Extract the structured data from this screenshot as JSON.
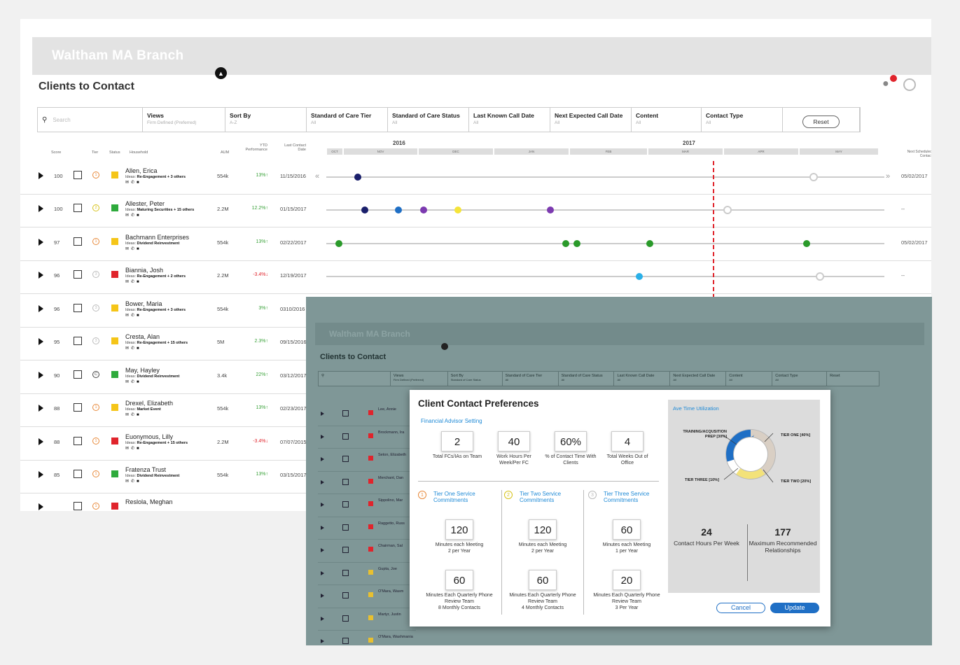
{
  "app": {
    "branch": "Waltham MA Branch",
    "page_title": "Clients to Contact"
  },
  "search": {
    "placeholder": "Search"
  },
  "filters": [
    {
      "label": "Views",
      "value": "Firm Defined (Preferred)"
    },
    {
      "label": "Sort By",
      "value": "A-Z"
    },
    {
      "label": "Standard of Care Tier",
      "value": "All"
    },
    {
      "label": "Standard of Care Status",
      "value": "All"
    },
    {
      "label": "Last Known Call Date",
      "value": "All"
    },
    {
      "label": "Next Expected Call Date",
      "value": "All"
    },
    {
      "label": "Content",
      "value": "All"
    },
    {
      "label": "Contact Type",
      "value": "All"
    }
  ],
  "reset_label": "Reset",
  "columns": {
    "score": "Score",
    "tier": "Tier",
    "status": "Status",
    "household": "Household",
    "aum": "AUM",
    "ytd": "YTD Performance",
    "last": "Last Contact Date",
    "next": "Next Scheduled Contact"
  },
  "timeline": {
    "years": [
      "2016",
      "2017"
    ],
    "months": [
      "OCT",
      "NOV",
      "DEC",
      "JAN",
      "FEB",
      "MAR",
      "APR",
      "MAY"
    ]
  },
  "rows": [
    {
      "score": "100",
      "tier": "1",
      "status_color": "#f5c518",
      "name": "Allen, Erica",
      "ideas": "Re-Engagement + 3 others",
      "aum": "554k",
      "ytd": "13%",
      "ytd_dir": "up",
      "last": "11/15/2016",
      "next": "05/02/2017"
    },
    {
      "score": "100",
      "tier": "2",
      "status_color": "#2eaa3c",
      "name": "Allester, Peter",
      "ideas": "Maturing Securities + 15 others",
      "aum": "2.2M",
      "ytd": "12.2%",
      "ytd_dir": "up",
      "last": "01/15/2017",
      "next": "--"
    },
    {
      "score": "97",
      "tier": "1",
      "status_color": "#f5c518",
      "name": "Bachmann Enterprises",
      "ideas": "Dividend Reinvestment",
      "aum": "554k",
      "ytd": "13%",
      "ytd_dir": "up",
      "last": "02/22/2017",
      "next": "05/02/2017"
    },
    {
      "score": "96",
      "tier": "3",
      "status_color": "#e0242c",
      "name": "Biannia, Josh",
      "ideas": "Re-Engagement + 2 others",
      "aum": "2.2M",
      "ytd": "-3.4%",
      "ytd_dir": "down",
      "last": "12/19/2017",
      "next": "--"
    },
    {
      "score": "96",
      "tier": "3",
      "status_color": "#f5c518",
      "name": "Bower, Maria",
      "ideas": "Re-Engagement + 3 others",
      "aum": "554k",
      "ytd": "3%",
      "ytd_dir": "up",
      "last": "0310/2016",
      "next": ""
    },
    {
      "score": "95",
      "tier": "3",
      "status_color": "#f5c518",
      "name": "Cresta, Alan",
      "ideas": "Re-Engagement + 15 others",
      "aum": "5M",
      "ytd": "2.3%",
      "ytd_dir": "up",
      "last": "09/15/2016",
      "next": ""
    },
    {
      "score": "90",
      "tier": "C",
      "status_color": "#2eaa3c",
      "name": "May, Hayley",
      "ideas": "Dividend Reinvestment",
      "aum": "3.4k",
      "ytd": "22%",
      "ytd_dir": "up",
      "last": "03/12/2017",
      "next": ""
    },
    {
      "score": "88",
      "tier": "1",
      "status_color": "#f5c518",
      "name": "Drexel, Elizabeth",
      "ideas": "Market Event",
      "aum": "554k",
      "ytd": "13%",
      "ytd_dir": "up",
      "last": "02/23/2017",
      "next": ""
    },
    {
      "score": "88",
      "tier": "1",
      "status_color": "#e0242c",
      "name": "Euonymous, Lilly",
      "ideas": "Re-Engagement + 15 others",
      "aum": "2.2M",
      "ytd": "-3.4%",
      "ytd_dir": "down",
      "last": "07/07/2015",
      "next": ""
    },
    {
      "score": "85",
      "tier": "1",
      "status_color": "#2eaa3c",
      "name": "Fratenza Trust",
      "ideas": "Dividend Reinvestment",
      "aum": "554k",
      "ytd": "13%",
      "ytd_dir": "up",
      "last": "03/15/2017",
      "next": ""
    },
    {
      "score": "",
      "tier": "1",
      "status_color": "#e0242c",
      "name": "Reslola, Meghan",
      "ideas": "",
      "aum": "",
      "ytd": "",
      "ytd_dir": "",
      "last": "",
      "next": ""
    }
  ],
  "overlay": {
    "branch": "Waltham MA Branch",
    "page_title": "Clients to Contact",
    "filters": [
      {
        "label": "Views",
        "value": "Firm Defined (Preferred)"
      },
      {
        "label": "Sort By",
        "value": "Standard of Care Status"
      },
      {
        "label": "Standard of Care Tier",
        "value": "All"
      },
      {
        "label": "Standard of Care Status",
        "value": "All"
      },
      {
        "label": "Last Known Call Date",
        "value": "All"
      },
      {
        "label": "Next Expected Call Date",
        "value": "All"
      },
      {
        "label": "Content",
        "value": "All"
      },
      {
        "label": "Contact Type",
        "value": "All"
      }
    ],
    "reset_label": "Reset",
    "rows": [
      {
        "name": "Lee, Annie",
        "status_color": "#e0242c"
      },
      {
        "name": "Brockmann, Ira",
        "status_color": "#e0242c"
      },
      {
        "name": "Seton, Elizabeth",
        "status_color": "#e0242c"
      },
      {
        "name": "Merchant, Dan",
        "status_color": "#e0242c"
      },
      {
        "name": "Sippolino, Mar",
        "status_color": "#e0242c"
      },
      {
        "name": "Raggetto, Russ",
        "status_color": "#e0242c"
      },
      {
        "name": "Chairman, Sal",
        "status_color": "#e0242c"
      },
      {
        "name": "Gupta, Joe",
        "status_color": "#e8c030"
      },
      {
        "name": "O'Mara, Wasm",
        "status_color": "#e8c030"
      },
      {
        "name": "Martyr, Justin",
        "status_color": "#e8c030"
      },
      {
        "name": "O'Mara, Washmania",
        "status_color": "#e8c030"
      }
    ]
  },
  "modal": {
    "title": "Client Contact Preferences",
    "subtitle": "Financial Advisor Setting",
    "stats": [
      {
        "value": "2",
        "label": "Total FCs/IAs on Team"
      },
      {
        "value": "40",
        "label": "Work Hours Per Week/Per FC"
      },
      {
        "value": "60%",
        "label": "% of Contact Time With Clients"
      },
      {
        "value": "4",
        "label": "Total Weeks Out of Office"
      }
    ],
    "tiers": [
      {
        "num": "1",
        "color": "#e8893a",
        "title": "Tier One Service Commitments",
        "meeting": "120",
        "meeting_label": "Minutes each Meeting",
        "meeting_freq": "2 per Year",
        "phone": "60",
        "phone_label": "Minutes Each Quarterly Phone Review Team",
        "phone_freq": "8 Monthly Contacts"
      },
      {
        "num": "2",
        "color": "#d6c21a",
        "title": "Tier Two Service Commitments",
        "meeting": "120",
        "meeting_label": "Minutes each Meeting",
        "meeting_freq": "2 per Year",
        "phone": "60",
        "phone_label": "Minutes Each Quarterly Phone Review Team",
        "phone_freq": "4 Monthly Contacts"
      },
      {
        "num": "3",
        "color": "#bbbbbb",
        "title": "Tier Three Service Commitments",
        "meeting": "60",
        "meeting_label": "Minutes each Meeting",
        "meeting_freq": "1 per Year",
        "phone": "20",
        "phone_label": "Minutes Each Quarterly Phone Review Team",
        "phone_freq": "3 Per Year"
      }
    ],
    "utilization": {
      "title": "Ave Time Utilization",
      "segments": [
        {
          "label": "TIER ONE",
          "pct": "[40%]",
          "value": 40,
          "color": "#d9cfc4"
        },
        {
          "label": "TIER TWO",
          "pct": "[20%]",
          "value": 20,
          "color": "#f3e27a"
        },
        {
          "label": "TIER THREE",
          "pct": "[10%]",
          "value": 10,
          "color": "#ffffff"
        },
        {
          "label": "TRAINING/ACQUSITION PREP",
          "pct": "[30%]",
          "value": 30,
          "color": "#1f6fc5"
        }
      ],
      "contact_hours": "24",
      "contact_hours_label": "Contact Hours Per Week",
      "max_rel": "177",
      "max_rel_label": "Maximum Recommended Relationships"
    },
    "cancel_label": "Cancel",
    "update_label": "Update"
  }
}
